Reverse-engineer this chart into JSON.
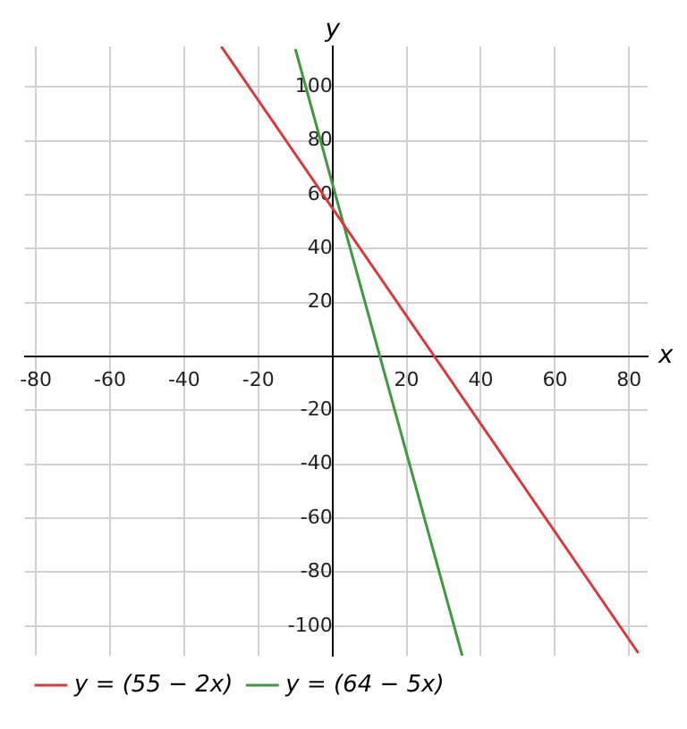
{
  "chart_data": {
    "type": "line",
    "xlabel": "x",
    "ylabel": "y",
    "xlim": [
      -83,
      85
    ],
    "ylim": [
      -111,
      115
    ],
    "xticks": [
      -80,
      -60,
      -40,
      -20,
      {
        "value": 0,
        "label": null
      },
      20,
      40,
      60,
      80
    ],
    "yticks": [
      -100,
      -80,
      -60,
      -40,
      -20,
      {
        "value": 0,
        "label": null
      },
      20,
      40,
      60,
      80,
      100
    ],
    "series": [
      {
        "name": "y = (55 − 2x)",
        "color": "#d8393b",
        "x": [
          -30,
          82.5
        ],
        "values": [
          115,
          -110
        ]
      },
      {
        "name": "y = (64 − 5x)",
        "color": "#3d9a3d",
        "x": [
          -10,
          35
        ],
        "values": [
          114,
          -111
        ]
      }
    ],
    "grid": true,
    "legend": "bottom left",
    "marker": "none",
    "line_style": "solid"
  }
}
